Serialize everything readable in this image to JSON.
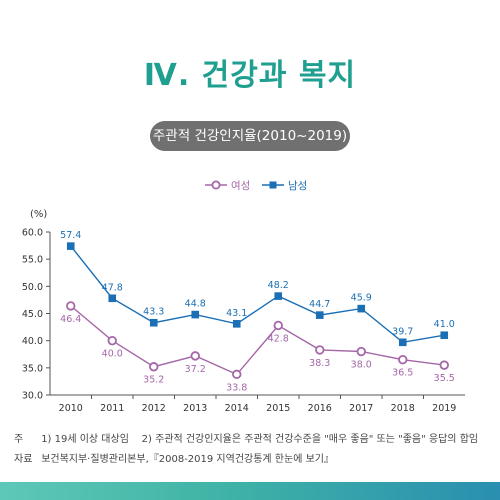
{
  "header": {
    "title": "Ⅳ. 건강과 복지"
  },
  "chart_data": {
    "type": "line",
    "title": "주관적 건강인지율(2010~2019)",
    "ylabel": "(%)",
    "xlabel": "",
    "ylim": [
      30.0,
      60.0
    ],
    "yticks": [
      "60.0",
      "55.0",
      "50.0",
      "45.0",
      "40.0",
      "35.0",
      "30.0"
    ],
    "categories": [
      "2010",
      "2011",
      "2012",
      "2013",
      "2014",
      "2015",
      "2016",
      "2017",
      "2018",
      "2019"
    ],
    "legend_position": "top-center",
    "grid": false,
    "series": [
      {
        "name": "여성",
        "color": "#a567a8",
        "marker": "open-circle",
        "values": [
          46.4,
          40.0,
          35.2,
          37.2,
          33.8,
          42.8,
          38.3,
          38.0,
          36.5,
          35.5
        ],
        "labels": [
          "46.4",
          "40.0",
          "35.2",
          "37.2",
          "33.8",
          "42.8",
          "38.3",
          "38.0",
          "36.5",
          "35.5"
        ]
      },
      {
        "name": "남성",
        "color": "#1a6fb5",
        "marker": "filled-square",
        "values": [
          57.4,
          47.8,
          43.3,
          44.8,
          43.1,
          48.2,
          44.7,
          45.9,
          39.7,
          41.0
        ],
        "labels": [
          "57.4",
          "47.8",
          "43.3",
          "44.8",
          "43.1",
          "48.2",
          "44.7",
          "45.9",
          "39.7",
          "41.0"
        ]
      }
    ]
  },
  "notes": {
    "note_tag": "주",
    "note_1": "1) 19세 이상 대상임",
    "note_2": "2) 주관적 건강인지율은 주관적 건강수준을 \"매우 좋음\" 또는 \"좋음\" 응답의 합임",
    "source_tag": "자료",
    "source": "보건복지부·질병관리본부,『2008-2019 지역건강통계 한눈에 보기』"
  },
  "colors": {
    "accent": "#1f9f8f",
    "pill_bg": "#707070",
    "axis": "#555555"
  }
}
